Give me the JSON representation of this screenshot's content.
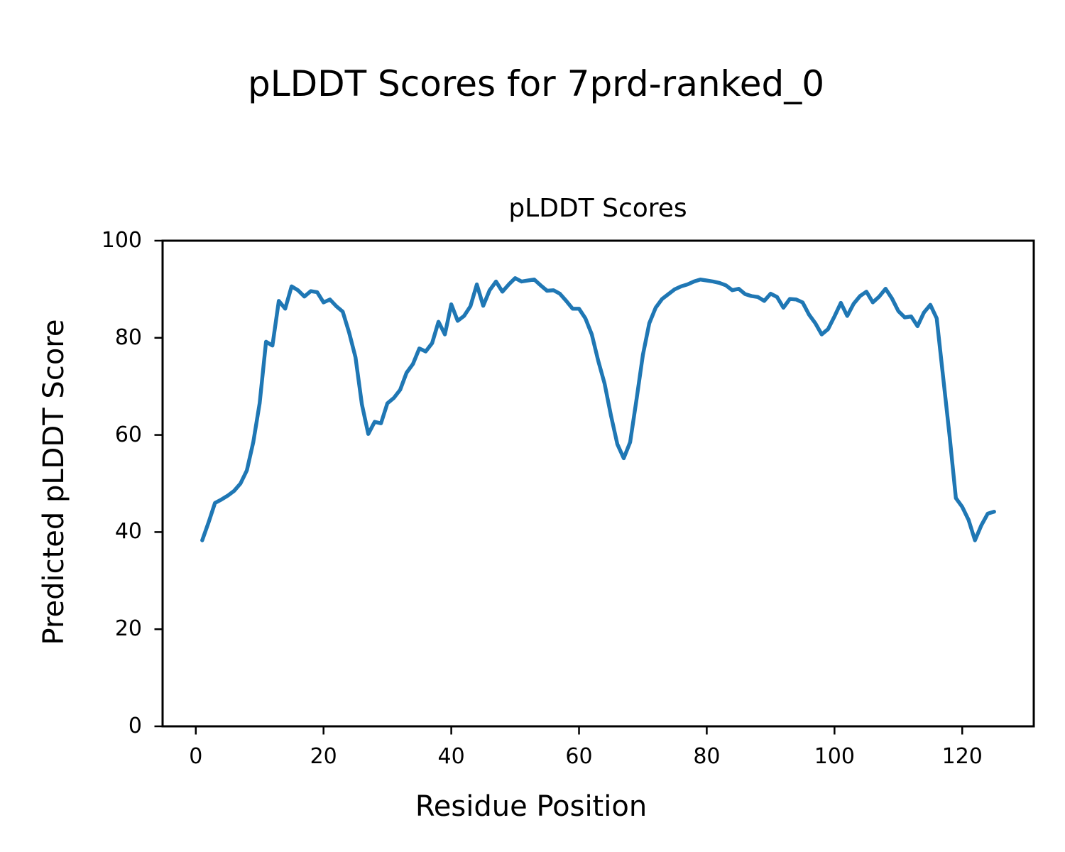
{
  "figure": {
    "suptitle": "pLDDT Scores for 7prd-ranked_0",
    "background_color": "#ffffff",
    "text_color": "#000000"
  },
  "chart_data": {
    "type": "line",
    "title": "pLDDT Scores",
    "xlabel": "Residue Position",
    "ylabel": "Predicted pLDDT Score",
    "grid": false,
    "legend": "none",
    "line_color": "#1f77b4",
    "spine_color": "#000000",
    "xlim": [
      -5.2,
      131.2
    ],
    "ylim": [
      0,
      100
    ],
    "xticks": [
      0,
      20,
      40,
      60,
      80,
      100,
      120
    ],
    "yticks": [
      0,
      20,
      40,
      60,
      80,
      100
    ],
    "x_start": 1,
    "x_step": 1,
    "series": [
      {
        "name": "pLDDT",
        "values": [
          38.3,
          42.0,
          46.0,
          46.7,
          47.5,
          48.5,
          50.0,
          52.7,
          58.5,
          66.5,
          79.2,
          78.4,
          87.6,
          86.0,
          90.6,
          89.8,
          88.5,
          89.6,
          89.4,
          87.3,
          87.9,
          86.5,
          85.4,
          81.1,
          76.0,
          66.3,
          60.2,
          62.7,
          62.4,
          66.5,
          67.6,
          69.3,
          72.8,
          74.6,
          77.8,
          77.2,
          78.9,
          83.3,
          80.7,
          86.9,
          83.5,
          84.5,
          86.5,
          91.0,
          86.6,
          89.8,
          91.6,
          89.5,
          91.0,
          92.3,
          91.6,
          91.8,
          92.0,
          90.8,
          89.7,
          89.8,
          89.1,
          87.6,
          86.0,
          86.0,
          84.0,
          80.7,
          75.3,
          70.6,
          64.0,
          58.1,
          55.2,
          58.5,
          67.3,
          76.5,
          83.0,
          86.2,
          88.0,
          89.0,
          90.0,
          90.6,
          91.0,
          91.6,
          92.0,
          91.8,
          91.6,
          91.3,
          90.8,
          89.8,
          90.1,
          89.0,
          88.6,
          88.4,
          87.6,
          89.1,
          88.4,
          86.2,
          88.0,
          87.9,
          87.3,
          84.8,
          83.0,
          80.7,
          81.8,
          84.4,
          87.2,
          84.5,
          87.0,
          88.6,
          89.5,
          87.3,
          88.5,
          90.1,
          88.1,
          85.5,
          84.2,
          84.4,
          82.4,
          85.2,
          86.8,
          84.0,
          72.0,
          60.0,
          47.0,
          45.2,
          42.5,
          38.3,
          41.4,
          43.8,
          44.2
        ]
      }
    ]
  }
}
